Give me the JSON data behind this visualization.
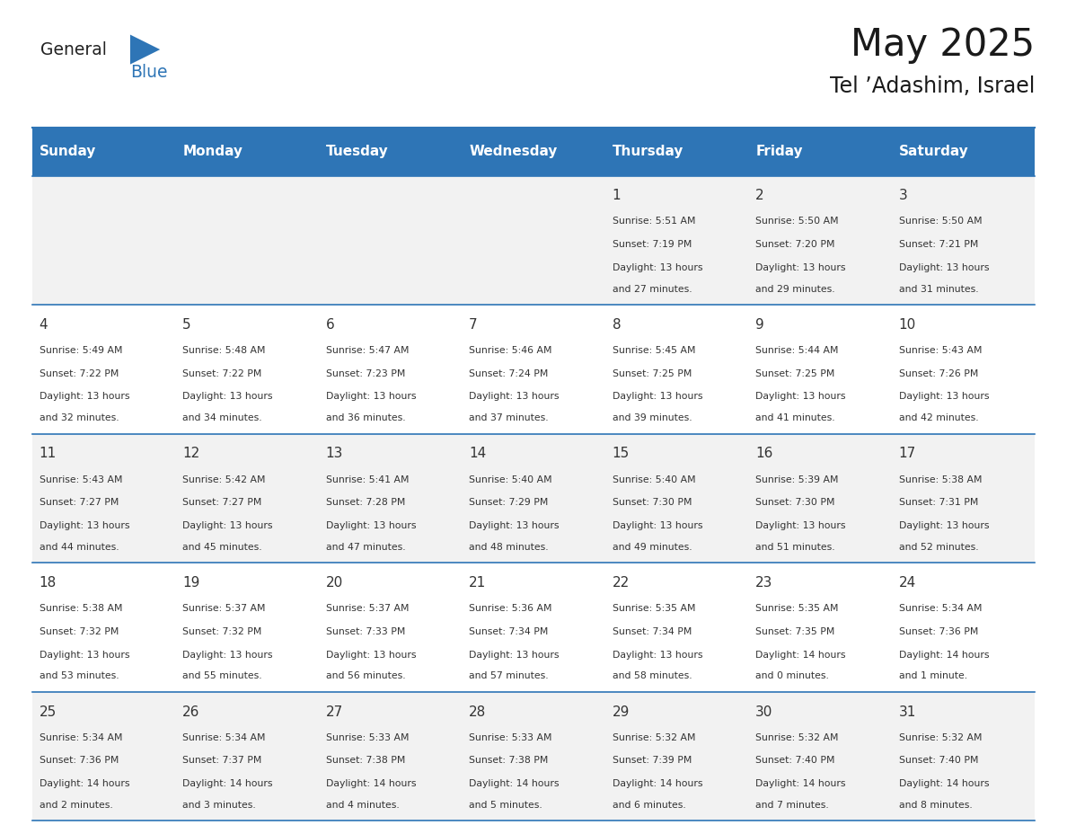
{
  "title": "May 2025",
  "subtitle": "Tel ’Adashim, Israel",
  "days_of_week": [
    "Sunday",
    "Monday",
    "Tuesday",
    "Wednesday",
    "Thursday",
    "Friday",
    "Saturday"
  ],
  "header_bg": "#2E75B6",
  "header_text_color": "#FFFFFF",
  "cell_bg_even": "#FFFFFF",
  "cell_bg_odd": "#F2F2F2",
  "cell_border_color": "#2E75B6",
  "day_number_color": "#333333",
  "cell_text_color": "#333333",
  "logo_general_color": "#222222",
  "logo_blue_color": "#2E75B6",
  "calendar_data": [
    [
      null,
      null,
      null,
      null,
      {
        "day": 1,
        "sunrise": "5:51 AM",
        "sunset": "7:19 PM",
        "daylight": "13 hours and 27 minutes."
      },
      {
        "day": 2,
        "sunrise": "5:50 AM",
        "sunset": "7:20 PM",
        "daylight": "13 hours and 29 minutes."
      },
      {
        "day": 3,
        "sunrise": "5:50 AM",
        "sunset": "7:21 PM",
        "daylight": "13 hours and 31 minutes."
      }
    ],
    [
      {
        "day": 4,
        "sunrise": "5:49 AM",
        "sunset": "7:22 PM",
        "daylight": "13 hours and 32 minutes."
      },
      {
        "day": 5,
        "sunrise": "5:48 AM",
        "sunset": "7:22 PM",
        "daylight": "13 hours and 34 minutes."
      },
      {
        "day": 6,
        "sunrise": "5:47 AM",
        "sunset": "7:23 PM",
        "daylight": "13 hours and 36 minutes."
      },
      {
        "day": 7,
        "sunrise": "5:46 AM",
        "sunset": "7:24 PM",
        "daylight": "13 hours and 37 minutes."
      },
      {
        "day": 8,
        "sunrise": "5:45 AM",
        "sunset": "7:25 PM",
        "daylight": "13 hours and 39 minutes."
      },
      {
        "day": 9,
        "sunrise": "5:44 AM",
        "sunset": "7:25 PM",
        "daylight": "13 hours and 41 minutes."
      },
      {
        "day": 10,
        "sunrise": "5:43 AM",
        "sunset": "7:26 PM",
        "daylight": "13 hours and 42 minutes."
      }
    ],
    [
      {
        "day": 11,
        "sunrise": "5:43 AM",
        "sunset": "7:27 PM",
        "daylight": "13 hours and 44 minutes."
      },
      {
        "day": 12,
        "sunrise": "5:42 AM",
        "sunset": "7:27 PM",
        "daylight": "13 hours and 45 minutes."
      },
      {
        "day": 13,
        "sunrise": "5:41 AM",
        "sunset": "7:28 PM",
        "daylight": "13 hours and 47 minutes."
      },
      {
        "day": 14,
        "sunrise": "5:40 AM",
        "sunset": "7:29 PM",
        "daylight": "13 hours and 48 minutes."
      },
      {
        "day": 15,
        "sunrise": "5:40 AM",
        "sunset": "7:30 PM",
        "daylight": "13 hours and 49 minutes."
      },
      {
        "day": 16,
        "sunrise": "5:39 AM",
        "sunset": "7:30 PM",
        "daylight": "13 hours and 51 minutes."
      },
      {
        "day": 17,
        "sunrise": "5:38 AM",
        "sunset": "7:31 PM",
        "daylight": "13 hours and 52 minutes."
      }
    ],
    [
      {
        "day": 18,
        "sunrise": "5:38 AM",
        "sunset": "7:32 PM",
        "daylight": "13 hours and 53 minutes."
      },
      {
        "day": 19,
        "sunrise": "5:37 AM",
        "sunset": "7:32 PM",
        "daylight": "13 hours and 55 minutes."
      },
      {
        "day": 20,
        "sunrise": "5:37 AM",
        "sunset": "7:33 PM",
        "daylight": "13 hours and 56 minutes."
      },
      {
        "day": 21,
        "sunrise": "5:36 AM",
        "sunset": "7:34 PM",
        "daylight": "13 hours and 57 minutes."
      },
      {
        "day": 22,
        "sunrise": "5:35 AM",
        "sunset": "7:34 PM",
        "daylight": "13 hours and 58 minutes."
      },
      {
        "day": 23,
        "sunrise": "5:35 AM",
        "sunset": "7:35 PM",
        "daylight": "14 hours and 0 minutes."
      },
      {
        "day": 24,
        "sunrise": "5:34 AM",
        "sunset": "7:36 PM",
        "daylight": "14 hours and 1 minute."
      }
    ],
    [
      {
        "day": 25,
        "sunrise": "5:34 AM",
        "sunset": "7:36 PM",
        "daylight": "14 hours and 2 minutes."
      },
      {
        "day": 26,
        "sunrise": "5:34 AM",
        "sunset": "7:37 PM",
        "daylight": "14 hours and 3 minutes."
      },
      {
        "day": 27,
        "sunrise": "5:33 AM",
        "sunset": "7:38 PM",
        "daylight": "14 hours and 4 minutes."
      },
      {
        "day": 28,
        "sunrise": "5:33 AM",
        "sunset": "7:38 PM",
        "daylight": "14 hours and 5 minutes."
      },
      {
        "day": 29,
        "sunrise": "5:32 AM",
        "sunset": "7:39 PM",
        "daylight": "14 hours and 6 minutes."
      },
      {
        "day": 30,
        "sunrise": "5:32 AM",
        "sunset": "7:40 PM",
        "daylight": "14 hours and 7 minutes."
      },
      {
        "day": 31,
        "sunrise": "5:32 AM",
        "sunset": "7:40 PM",
        "daylight": "14 hours and 8 minutes."
      }
    ]
  ]
}
